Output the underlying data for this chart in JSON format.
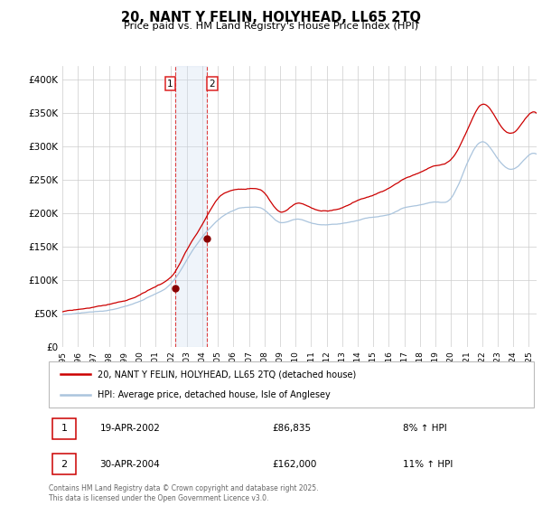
{
  "title": "20, NANT Y FELIN, HOLYHEAD, LL65 2TQ",
  "subtitle": "Price paid vs. HM Land Registry's House Price Index (HPI)",
  "legend_line1": "20, NANT Y FELIN, HOLYHEAD, LL65 2TQ (detached house)",
  "legend_line2": "HPI: Average price, detached house, Isle of Anglesey",
  "transaction1_date": "19-APR-2002",
  "transaction1_price": "£86,835",
  "transaction1_hpi": "8% ↑ HPI",
  "transaction2_date": "30-APR-2004",
  "transaction2_price": "£162,000",
  "transaction2_hpi": "11% ↑ HPI",
  "footnote": "Contains HM Land Registry data © Crown copyright and database right 2025.\nThis data is licensed under the Open Government Licence v3.0.",
  "hpi_color": "#aac4dd",
  "price_color": "#cc0000",
  "marker_color": "#880000",
  "shade_color": "#ccddef",
  "vline_color": "#dd2222",
  "background_color": "#ffffff",
  "grid_color": "#cccccc",
  "ylim_min": 0,
  "ylim_max": 420000,
  "hpi_years": [
    1995,
    1996,
    1997,
    1998,
    1999,
    2000,
    2001,
    2002,
    2003,
    2004,
    2005,
    2006,
    2007,
    2008,
    2009,
    2010,
    2011,
    2012,
    2013,
    2014,
    2015,
    2016,
    2017,
    2018,
    2019,
    2020,
    2021,
    2022,
    2023,
    2024,
    2025,
    2025.5
  ],
  "hpi_vals": [
    48000,
    50000,
    53000,
    56000,
    62000,
    70000,
    80000,
    95000,
    130000,
    165000,
    190000,
    205000,
    210000,
    205000,
    185000,
    190000,
    185000,
    183000,
    185000,
    190000,
    195000,
    200000,
    210000,
    215000,
    220000,
    225000,
    275000,
    310000,
    285000,
    270000,
    290000,
    292000
  ],
  "price_years": [
    1995,
    1996,
    1997,
    1998,
    1999,
    2000,
    2001,
    2002,
    2003,
    2004,
    2005,
    2006,
    2007,
    2008,
    2009,
    2010,
    2011,
    2012,
    2013,
    2014,
    2015,
    2016,
    2017,
    2018,
    2019,
    2020,
    2021,
    2022,
    2023,
    2024,
    2025,
    2025.5
  ],
  "price_vals": [
    52000,
    55000,
    58000,
    62000,
    68000,
    76000,
    88000,
    103000,
    143000,
    182000,
    220000,
    232000,
    234000,
    228000,
    200000,
    212000,
    207000,
    202000,
    207000,
    217000,
    224000,
    235000,
    248000,
    258000,
    268000,
    278000,
    320000,
    360000,
    335000,
    318000,
    345000,
    347000
  ],
  "t1_x": 2002.29,
  "t1_y": 86835,
  "t2_x": 2004.29,
  "t2_y": 162000,
  "xmin": 1995,
  "xmax": 2025.5,
  "yticks": [
    0,
    50000,
    100000,
    150000,
    200000,
    250000,
    300000,
    350000,
    400000
  ],
  "xticks": [
    1995,
    1996,
    1997,
    1998,
    1999,
    2000,
    2001,
    2002,
    2003,
    2004,
    2005,
    2006,
    2007,
    2008,
    2009,
    2010,
    2011,
    2012,
    2013,
    2014,
    2015,
    2016,
    2017,
    2018,
    2019,
    2020,
    2021,
    2022,
    2023,
    2024,
    2025
  ]
}
